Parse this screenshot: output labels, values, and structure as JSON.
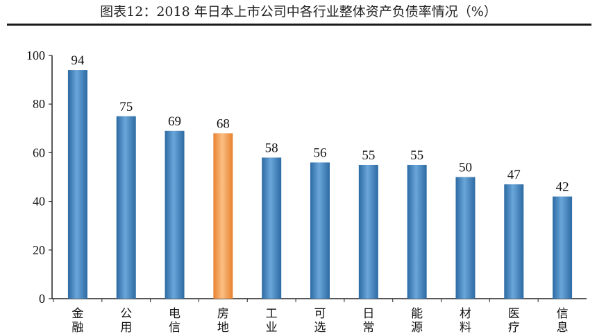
{
  "chart_title": "图表12：2018 年日本上市公司中各行业整体资产负债率情况（%）",
  "chart_data": {
    "type": "bar",
    "title": "图表12：2018 年日本上市公司中各行业整体资产负债率情况（%）",
    "categories": [
      "金融",
      "公用",
      "电信",
      "房地",
      "工业",
      "可选",
      "日常",
      "能源",
      "材料",
      "医疗",
      "信息"
    ],
    "values": [
      94,
      75,
      69,
      68,
      58,
      56,
      55,
      55,
      50,
      47,
      42
    ],
    "highlight_category": "房地",
    "ylim": [
      0,
      100
    ],
    "yticks": [
      0,
      20,
      40,
      60,
      80,
      100
    ],
    "xlabel": "",
    "ylabel": "",
    "grid": false,
    "colors": {
      "bar": "#3d7fb8",
      "highlight": "#f39a4c",
      "axis": "#222222"
    }
  }
}
